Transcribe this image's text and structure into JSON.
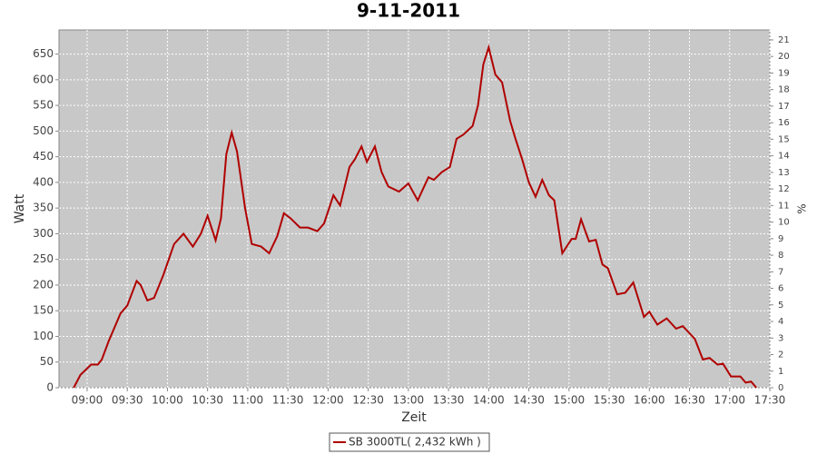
{
  "chart_data": {
    "type": "line",
    "title": "9-11-2011",
    "x_label": "Zeit",
    "y_label": "Watt",
    "y2_label": "%",
    "x": [
      "08:50",
      "08:55",
      "09:03",
      "09:08",
      "09:11",
      "09:16",
      "09:25",
      "09:30",
      "09:37",
      "09:40",
      "09:45",
      "09:50",
      "09:57",
      "10:05",
      "10:12",
      "10:19",
      "10:25",
      "10:30",
      "10:36",
      "10:40",
      "10:44",
      "10:48",
      "10:52",
      "10:58",
      "11:03",
      "11:10",
      "11:16",
      "11:22",
      "11:27",
      "11:32",
      "11:39",
      "11:45",
      "11:52",
      "11:57",
      "12:04",
      "12:09",
      "12:16",
      "12:20",
      "12:25",
      "12:29",
      "12:35",
      "12:40",
      "12:45",
      "12:53",
      "13:00",
      "13:07",
      "13:15",
      "13:19",
      "13:25",
      "13:31",
      "13:36",
      "13:41",
      "13:48",
      "13:52",
      "13:56",
      "14:00",
      "14:05",
      "14:10",
      "14:16",
      "14:20",
      "14:25",
      "14:30",
      "14:35",
      "14:40",
      "14:45",
      "14:49",
      "14:55",
      "15:02",
      "15:05",
      "15:09",
      "15:15",
      "15:20",
      "15:25",
      "15:29",
      "15:36",
      "15:42",
      "15:48",
      "15:56",
      "16:00",
      "16:06",
      "16:13",
      "16:20",
      "16:25",
      "16:34",
      "16:40",
      "16:45",
      "16:51",
      "16:55",
      "17:01",
      "17:08",
      "17:12",
      "17:16",
      "17:20"
    ],
    "series": [
      {
        "name": "SB 3000TL( 2,432 kWh )",
        "color": "#b00000",
        "values": [
          0,
          25,
          45,
          45,
          55,
          90,
          145,
          160,
          208,
          200,
          170,
          175,
          220,
          280,
          300,
          275,
          300,
          335,
          287,
          330,
          455,
          497,
          460,
          350,
          280,
          275,
          262,
          295,
          340,
          330,
          312,
          312,
          305,
          320,
          375,
          355,
          430,
          445,
          470,
          440,
          470,
          420,
          392,
          382,
          398,
          365,
          410,
          405,
          420,
          430,
          485,
          493,
          510,
          550,
          630,
          663,
          610,
          595,
          520,
          485,
          445,
          400,
          372,
          405,
          375,
          365,
          262,
          290,
          290,
          328,
          285,
          288,
          240,
          233,
          182,
          185,
          205,
          138,
          148,
          123,
          135,
          115,
          120,
          95,
          55,
          58,
          45,
          47,
          22,
          22,
          10,
          12,
          0
        ]
      }
    ],
    "xlim": [
      "08:39",
      "17:30"
    ],
    "xticks": [
      "09:00",
      "09:30",
      "10:00",
      "10:30",
      "11:00",
      "11:30",
      "12:00",
      "12:30",
      "13:00",
      "13:30",
      "14:00",
      "14:30",
      "15:00",
      "15:30",
      "16:00",
      "16:30",
      "17:00",
      "17:30"
    ],
    "ylim": [
      0,
      697
    ],
    "yticks": [
      0,
      50,
      100,
      150,
      200,
      250,
      300,
      350,
      400,
      450,
      500,
      550,
      600,
      650
    ],
    "y2lim": [
      0,
      21.6
    ],
    "y2ticks": [
      0,
      1,
      2,
      3,
      4,
      5,
      6,
      7,
      8,
      9,
      10,
      11,
      12,
      13,
      14,
      15,
      16,
      17,
      18,
      19,
      20,
      21
    ],
    "grid": true,
    "legend": "bottom"
  }
}
